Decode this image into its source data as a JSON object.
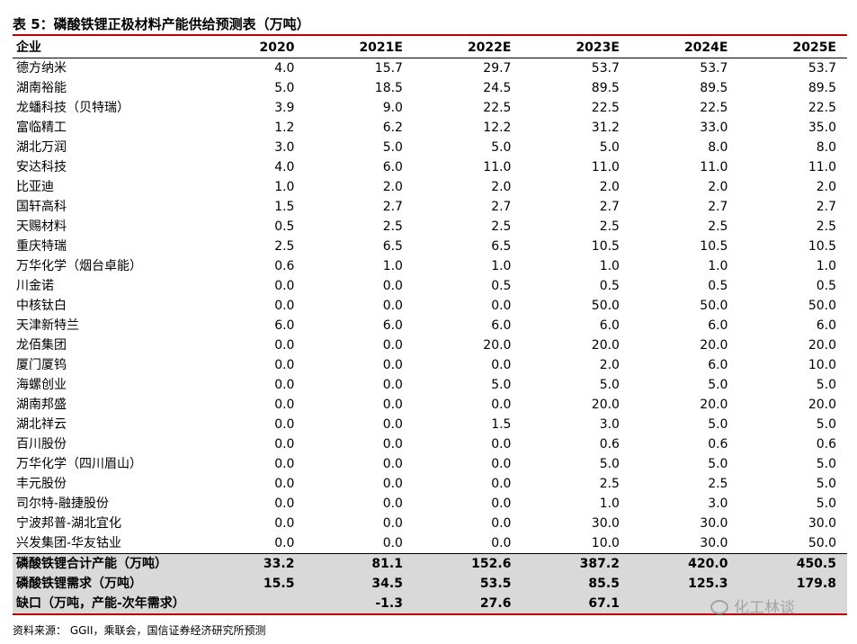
{
  "title": "表 5：磷酸铁锂正极材料产能供给预测表（万吨）",
  "table": {
    "headers": [
      "企业",
      "2020",
      "2021E",
      "2022E",
      "2023E",
      "2024E",
      "2025E"
    ],
    "rows": [
      [
        "德方纳米",
        "4.0",
        "15.7",
        "29.7",
        "53.7",
        "53.7",
        "53.7"
      ],
      [
        "湖南裕能",
        "5.0",
        "18.5",
        "24.5",
        "89.5",
        "89.5",
        "89.5"
      ],
      [
        "龙蟠科技（贝特瑞）",
        "3.9",
        "9.0",
        "22.5",
        "22.5",
        "22.5",
        "22.5"
      ],
      [
        "富临精工",
        "1.2",
        "6.2",
        "12.2",
        "31.2",
        "33.0",
        "35.0"
      ],
      [
        "湖北万润",
        "3.0",
        "5.0",
        "5.0",
        "5.0",
        "8.0",
        "8.0"
      ],
      [
        "安达科技",
        "4.0",
        "6.0",
        "11.0",
        "11.0",
        "11.0",
        "11.0"
      ],
      [
        "比亚迪",
        "1.0",
        "2.0",
        "2.0",
        "2.0",
        "2.0",
        "2.0"
      ],
      [
        "国轩高科",
        "1.5",
        "2.7",
        "2.7",
        "2.7",
        "2.7",
        "2.7"
      ],
      [
        "天赐材料",
        "0.5",
        "2.5",
        "2.5",
        "2.5",
        "2.5",
        "2.5"
      ],
      [
        "重庆特瑞",
        "2.5",
        "6.5",
        "6.5",
        "10.5",
        "10.5",
        "10.5"
      ],
      [
        "万华化学（烟台卓能）",
        "0.6",
        "1.0",
        "1.0",
        "1.0",
        "1.0",
        "1.0"
      ],
      [
        "川金诺",
        "0.0",
        "0.0",
        "0.5",
        "0.5",
        "0.5",
        "0.5"
      ],
      [
        "中核钛白",
        "0.0",
        "0.0",
        "0.0",
        "50.0",
        "50.0",
        "50.0"
      ],
      [
        "天津新特兰",
        "6.0",
        "6.0",
        "6.0",
        "6.0",
        "6.0",
        "6.0"
      ],
      [
        "龙佰集团",
        "0.0",
        "0.0",
        "20.0",
        "20.0",
        "20.0",
        "20.0"
      ],
      [
        "厦门厦钨",
        "0.0",
        "0.0",
        "0.0",
        "2.0",
        "6.0",
        "10.0"
      ],
      [
        "海螺创业",
        "0.0",
        "0.0",
        "5.0",
        "5.0",
        "5.0",
        "5.0"
      ],
      [
        "湖南邦盛",
        "0.0",
        "0.0",
        "0.0",
        "20.0",
        "20.0",
        "20.0"
      ],
      [
        "湖北祥云",
        "0.0",
        "0.0",
        "1.5",
        "3.0",
        "5.0",
        "5.0"
      ],
      [
        "百川股份",
        "0.0",
        "0.0",
        "0.0",
        "0.6",
        "0.6",
        "0.6"
      ],
      [
        "万华化学（四川眉山）",
        "0.0",
        "0.0",
        "0.0",
        "5.0",
        "5.0",
        "5.0"
      ],
      [
        "丰元股份",
        "0.0",
        "0.0",
        "0.0",
        "2.5",
        "2.5",
        "5.0"
      ],
      [
        "司尔特-融捷股份",
        "0.0",
        "0.0",
        "0.0",
        "1.0",
        "3.0",
        "5.0"
      ],
      [
        "宁波邦普-湖北宜化",
        "0.0",
        "0.0",
        "0.0",
        "30.0",
        "30.0",
        "30.0"
      ],
      [
        "兴发集团-华友钴业",
        "0.0",
        "0.0",
        "0.0",
        "10.0",
        "30.0",
        "50.0"
      ]
    ],
    "summary": [
      [
        "磷酸铁锂合计产能（万吨）",
        "33.2",
        "81.1",
        "152.6",
        "387.2",
        "420.0",
        "450.5"
      ],
      [
        "磷酸铁锂需求（万吨）",
        "15.5",
        "34.5",
        "53.5",
        "85.5",
        "125.3",
        "179.8"
      ],
      [
        "缺口（万吨，产能-次年需求）",
        "",
        "-1.3",
        "27.6",
        "67.1",
        "",
        ""
      ]
    ]
  },
  "source": "资料来源： GGII，乘联会，国信证券经济研究所预测",
  "watermark": "化工林谈"
}
